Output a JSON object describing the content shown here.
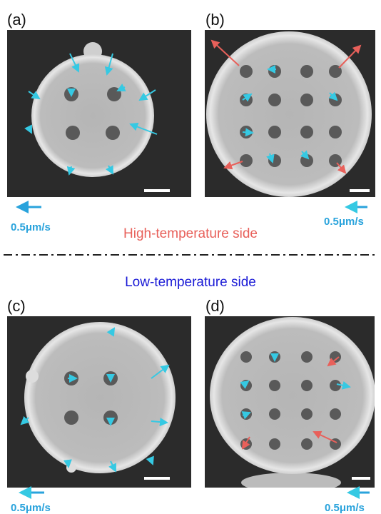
{
  "panels": [
    {
      "label": "(a)",
      "scale_label": "0.5μm/s"
    },
    {
      "label": "(b)",
      "scale_label": "0.5μm/s"
    },
    {
      "label": "(c)",
      "scale_label": "0.5μm/s"
    },
    {
      "label": "(d)",
      "scale_label": "0.5μm/s"
    }
  ],
  "captions": {
    "high": "High-temperature side",
    "low": "Low-temperature side"
  }
}
